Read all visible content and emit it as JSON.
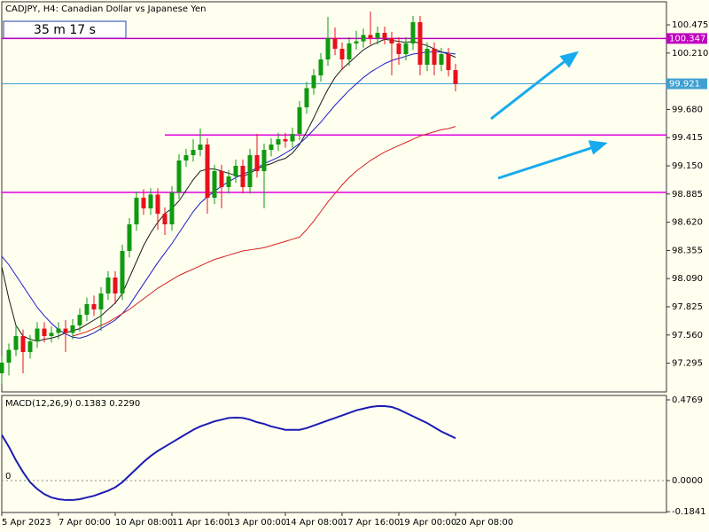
{
  "chart_data": {
    "type": "candlestick",
    "title": "CADJPY, H4:  Canadian Dollar vs Japanese Yen",
    "timer": "35 m 17 s",
    "categories": [
      "5 Apr 2023",
      null,
      null,
      null,
      null,
      null,
      null,
      null,
      "7 Apr 00:00",
      null,
      null,
      null,
      null,
      null,
      null,
      null,
      "10 Apr 08:00",
      null,
      null,
      null,
      null,
      null,
      null,
      null,
      "11 Apr 16:00",
      null,
      null,
      null,
      null,
      null,
      null,
      null,
      "13 Apr 00:00",
      null,
      null,
      null,
      null,
      null,
      null,
      null,
      "14 Apr 08:00",
      null,
      null,
      null,
      null,
      null,
      null,
      null,
      "17 Apr 16:00",
      null,
      null,
      null,
      null,
      null,
      null,
      null,
      "19 Apr 00:00",
      null,
      null,
      null,
      null,
      null,
      null,
      null,
      "20 Apr 08:00"
    ],
    "open": [
      97.2,
      97.3,
      97.42,
      97.55,
      97.4,
      97.5,
      97.62,
      97.55,
      97.58,
      97.62,
      97.58,
      97.65,
      97.75,
      97.85,
      97.8,
      97.95,
      98.1,
      97.95,
      98.35,
      98.6,
      98.85,
      98.75,
      98.88,
      98.7,
      98.6,
      98.9,
      99.2,
      99.25,
      99.3,
      99.35,
      98.85,
      99.1,
      98.95,
      99.05,
      99.15,
      98.95,
      99.25,
      99.1,
      99.3,
      99.35,
      99.4,
      99.38,
      99.45,
      99.7,
      99.88,
      100.0,
      100.15,
      100.35,
      100.25,
      100.15,
      100.3,
      100.32,
      100.38,
      100.35,
      100.4,
      100.35,
      100.3,
      100.2,
      100.3,
      100.5,
      100.1,
      100.25,
      100.1,
      100.2,
      100.05
    ],
    "high": [
      97.36,
      97.48,
      97.65,
      97.61,
      97.56,
      97.68,
      97.68,
      97.64,
      97.68,
      97.7,
      97.71,
      97.81,
      97.91,
      97.93,
      98.01,
      98.16,
      98.16,
      98.41,
      98.66,
      98.91,
      98.93,
      98.94,
      98.94,
      98.76,
      98.96,
      99.26,
      99.31,
      99.4,
      99.5,
      99.41,
      99.16,
      99.16,
      99.11,
      99.21,
      99.21,
      99.31,
      99.45,
      99.36,
      99.41,
      99.46,
      99.46,
      99.51,
      99.76,
      99.94,
      100.06,
      100.21,
      100.55,
      100.45,
      100.31,
      100.36,
      100.42,
      100.44,
      100.6,
      100.46,
      100.46,
      100.41,
      100.36,
      100.36,
      100.56,
      100.56,
      100.31,
      100.31,
      100.26,
      100.26,
      100.11
    ],
    "low": [
      97.1,
      97.18,
      97.36,
      97.2,
      97.34,
      97.44,
      97.49,
      97.49,
      97.52,
      97.4,
      97.52,
      97.59,
      97.69,
      97.74,
      97.6,
      97.89,
      97.85,
      97.89,
      98.29,
      98.54,
      98.69,
      98.69,
      98.55,
      98.5,
      98.54,
      98.84,
      99.14,
      99.19,
      99.24,
      98.7,
      98.79,
      98.75,
      98.89,
      98.99,
      98.89,
      98.89,
      99.04,
      98.75,
      99.24,
      99.29,
      99.32,
      99.32,
      99.39,
      99.64,
      99.82,
      99.94,
      100.09,
      100.19,
      100.05,
      100.09,
      100.24,
      100.26,
      100.29,
      100.29,
      100.29,
      100.0,
      100.1,
      100.14,
      100.24,
      100.0,
      100.04,
      100.0,
      100.04,
      99.99,
      99.85
    ],
    "close": [
      97.3,
      97.42,
      97.55,
      97.4,
      97.5,
      97.62,
      97.55,
      97.58,
      97.62,
      97.58,
      97.65,
      97.75,
      97.85,
      97.8,
      97.95,
      98.1,
      97.95,
      98.35,
      98.6,
      98.85,
      98.75,
      98.88,
      98.7,
      98.6,
      98.9,
      99.2,
      99.25,
      99.3,
      99.35,
      98.85,
      99.1,
      98.95,
      99.05,
      99.15,
      98.95,
      99.25,
      99.1,
      99.3,
      99.35,
      99.4,
      99.38,
      99.45,
      99.7,
      99.88,
      100.0,
      100.15,
      100.35,
      100.25,
      100.15,
      100.3,
      100.32,
      100.38,
      100.35,
      100.4,
      100.35,
      100.3,
      100.2,
      100.3,
      100.5,
      100.1,
      100.25,
      100.1,
      100.2,
      100.05,
      99.92
    ],
    "up_color": "#0f9a0f",
    "down_color": "#e8101a",
    "series": [
      {
        "color": "#1a1a1a",
        "values": [
          98.2,
          97.9,
          97.65,
          97.55,
          97.52,
          97.5,
          97.52,
          97.53,
          97.55,
          97.58,
          97.6,
          97.62,
          97.66,
          97.7,
          97.74,
          97.8,
          97.86,
          97.95,
          98.1,
          98.25,
          98.4,
          98.52,
          98.62,
          98.7,
          98.75,
          98.82,
          98.92,
          99.02,
          99.1,
          99.12,
          99.12,
          99.1,
          99.08,
          99.06,
          99.05,
          99.08,
          99.12,
          99.15,
          99.17,
          99.2,
          99.22,
          99.27,
          99.35,
          99.47,
          99.6,
          99.74,
          99.87,
          99.98,
          100.06,
          100.12,
          100.18,
          100.24,
          100.28,
          100.31,
          100.34,
          100.33,
          100.32,
          100.31,
          100.32,
          100.3,
          100.28,
          100.25,
          100.22,
          100.2,
          100.17
        ]
      },
      {
        "color": "#1c1cc8",
        "values": [
          98.3,
          98.22,
          98.12,
          98.02,
          97.92,
          97.82,
          97.74,
          97.67,
          97.61,
          97.57,
          97.54,
          97.53,
          97.55,
          97.58,
          97.62,
          97.66,
          97.7,
          97.76,
          97.84,
          97.94,
          98.04,
          98.14,
          98.24,
          98.33,
          98.42,
          98.52,
          98.62,
          98.72,
          98.8,
          98.86,
          98.91,
          98.96,
          99.0,
          99.04,
          99.07,
          99.1,
          99.13,
          99.17,
          99.2,
          99.23,
          99.27,
          99.31,
          99.36,
          99.42,
          99.49,
          99.56,
          99.64,
          99.72,
          99.79,
          99.86,
          99.92,
          99.98,
          100.03,
          100.07,
          100.11,
          100.14,
          100.16,
          100.18,
          100.2,
          100.21,
          100.22,
          100.22,
          100.22,
          100.21,
          100.2
        ]
      },
      {
        "color": "#d42020",
        "values": [
          null,
          null,
          null,
          null,
          null,
          null,
          null,
          null,
          null,
          null,
          97.55,
          97.57,
          97.59,
          97.62,
          97.65,
          97.68,
          97.72,
          97.76,
          97.8,
          97.85,
          97.9,
          97.95,
          98.0,
          98.04,
          98.08,
          98.12,
          98.15,
          98.18,
          98.21,
          98.24,
          98.27,
          98.29,
          98.31,
          98.33,
          98.35,
          98.36,
          98.37,
          98.38,
          98.4,
          98.42,
          98.44,
          98.46,
          98.48,
          98.55,
          98.63,
          98.72,
          98.81,
          98.89,
          98.97,
          99.04,
          99.1,
          99.15,
          99.2,
          99.24,
          99.28,
          99.31,
          99.34,
          99.37,
          99.4,
          99.43,
          99.45,
          99.47,
          99.49,
          99.5,
          99.52
        ]
      }
    ],
    "levels": [
      {
        "value": 100.347,
        "color": "#c000c0",
        "labeled": true
      },
      {
        "value": 99.921,
        "color": "#3fa0d0",
        "labeled": true
      },
      {
        "value": 99.44,
        "color": "#e000e0",
        "start": 23
      },
      {
        "value": 98.9,
        "color": "#e000e0"
      }
    ],
    "ylim": [
      97.025,
      100.692
    ],
    "yticks": [
      97.295,
      {
        "value": 97.56,
        "label": "97.560"
      },
      97.825,
      {
        "value": 98.09,
        "label": "98.090"
      },
      98.355,
      {
        "value": 98.62,
        "label": "98.620"
      },
      98.885,
      {
        "value": 99.15,
        "label": "99.150"
      },
      99.415,
      {
        "value": 99.68,
        "label": "99.680"
      },
      {
        "value": 100.21,
        "label": "100.210"
      },
      100.475
    ],
    "indicator": {
      "type": "line",
      "title": "MACD(12,26,9) 0.1383 0.2290",
      "level_label": "0",
      "color": "#1c1cb4",
      "values": [
        0.27,
        0.2,
        0.12,
        0.05,
        -0.01,
        -0.05,
        -0.08,
        -0.1,
        -0.11,
        -0.115,
        -0.115,
        -0.11,
        -0.1,
        -0.09,
        -0.075,
        -0.06,
        -0.04,
        -0.01,
        0.03,
        0.07,
        0.11,
        0.145,
        0.175,
        0.2,
        0.225,
        0.25,
        0.275,
        0.3,
        0.32,
        0.335,
        0.35,
        0.36,
        0.37,
        0.372,
        0.37,
        0.36,
        0.345,
        0.335,
        0.32,
        0.31,
        0.3,
        0.3,
        0.3,
        0.31,
        0.325,
        0.34,
        0.355,
        0.37,
        0.385,
        0.4,
        0.415,
        0.425,
        0.435,
        0.44,
        0.44,
        0.435,
        0.42,
        0.4,
        0.38,
        0.36,
        0.34,
        0.315,
        0.29,
        0.27,
        0.25
      ],
      "ylim": [
        -0.1887,
        0.503
      ],
      "yticks": [
        0.4769,
        {
          "value": 0,
          "label": "0.0000"
        },
        -0.1841
      ]
    }
  }
}
